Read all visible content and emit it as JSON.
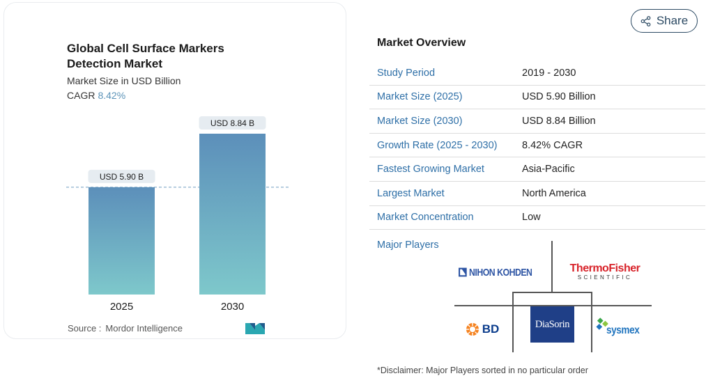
{
  "chart_card": {
    "title": "Global Cell Surface Markers Detection Market",
    "subtitle": "Market Size in USD Billion",
    "cagr_label": "CAGR",
    "cagr_value": "8.42%",
    "source_label": "Source :",
    "source_name": "Mordor Intelligence",
    "brand_logo_icon": "mordor-intelligence-logo-icon"
  },
  "chart_data": {
    "type": "bar",
    "categories": [
      "2025",
      "2030"
    ],
    "values": [
      5.9,
      8.84
    ],
    "data_labels": [
      "USD 5.90 B",
      "USD 8.84 B"
    ],
    "title": "Global Cell Surface Markers Detection Market",
    "subtitle": "Market Size in USD Billion",
    "ylabel": "",
    "xlabel": "",
    "ylim": [
      0,
      8.84
    ],
    "grid": false,
    "reference_line": "dashed line at first bar value",
    "colors": {
      "bar_top": "#5c8fba",
      "bar_bottom": "#7ec8cb",
      "label_bg": "#e6ecf1",
      "reference_line": "#6f9cc0"
    }
  },
  "share": {
    "label": "Share",
    "icon": "share-icon"
  },
  "overview": {
    "title": "Market Overview",
    "rows": [
      {
        "key": "Study Period",
        "value": "2019 - 2030"
      },
      {
        "key": "Market Size (2025)",
        "value": "USD 5.90 Billion"
      },
      {
        "key": "Market Size (2030)",
        "value": "USD 8.84 Billion"
      },
      {
        "key": "Growth Rate (2025 - 2030)",
        "value": "8.42% CAGR"
      },
      {
        "key": "Fastest Growing Market",
        "value": "Asia-Pacific"
      },
      {
        "key": "Largest Market",
        "value": "North America"
      },
      {
        "key": "Market Concentration",
        "value": "Low"
      }
    ]
  },
  "major_players": {
    "title": "Major Players",
    "logos": [
      {
        "name": "NIHON KOHDEN",
        "icon": "nihon-kohden-logo"
      },
      {
        "name": "ThermoFisher",
        "sub": "SCIENTIFIC",
        "icon": "thermo-fisher-logo"
      },
      {
        "name": "BD",
        "icon": "bd-logo"
      },
      {
        "name": "DiaSorin",
        "icon": "diasorin-logo"
      },
      {
        "name": "sysmex",
        "icon": "sysmex-logo"
      }
    ]
  },
  "disclaimer": "*Disclaimer: Major Players sorted in no particular order"
}
